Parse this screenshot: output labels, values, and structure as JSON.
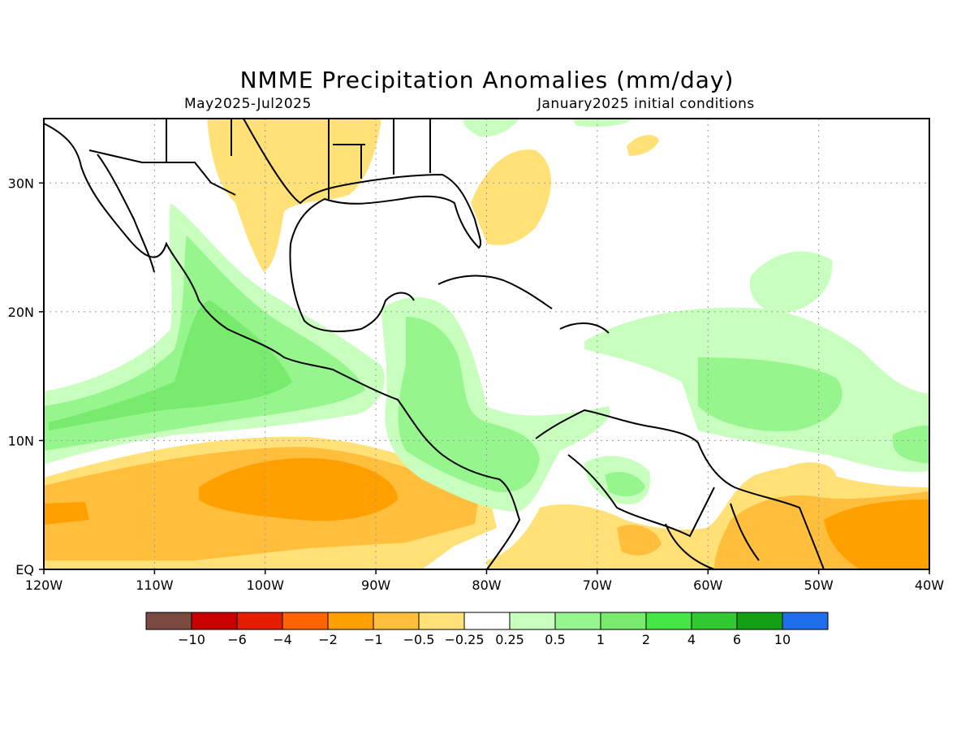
{
  "title": "NMME Precipitation Anomalies (mm/day)",
  "subtitle_left": "May2025-Jul2025",
  "subtitle_right": "January2025 initial conditions",
  "map": {
    "lon_range": [
      -120,
      -40
    ],
    "lat_range": [
      0,
      35
    ],
    "lat_ticks": [
      {
        "value": 30,
        "label": "30N"
      },
      {
        "value": 20,
        "label": "20N"
      },
      {
        "value": 10,
        "label": "10N"
      },
      {
        "value": 0,
        "label": "EQ"
      }
    ],
    "lon_ticks": [
      {
        "value": -120,
        "label": "120W"
      },
      {
        "value": -110,
        "label": "110W"
      },
      {
        "value": -100,
        "label": "100W"
      },
      {
        "value": -90,
        "label": "90W"
      },
      {
        "value": -80,
        "label": "80W"
      },
      {
        "value": -70,
        "label": "70W"
      },
      {
        "value": -60,
        "label": "60W"
      },
      {
        "value": -50,
        "label": "50W"
      },
      {
        "value": -40,
        "label": "40W"
      }
    ],
    "grid": "dotted"
  },
  "colorbar": {
    "colors": [
      "#7a4a40",
      "#c80000",
      "#e61e00",
      "#ff6400",
      "#ffa000",
      "#ffbe3c",
      "#ffe178",
      "#ffffff",
      "#c8ffbe",
      "#96f58c",
      "#78eb6e",
      "#46e646",
      "#32c832",
      "#14a014",
      "#1e6eeb"
    ],
    "labels": [
      "−10",
      "−6",
      "−4",
      "−2",
      "−1",
      "−0.5",
      "−0.25",
      "0.25",
      "0.5",
      "1",
      "2",
      "4",
      "6",
      "10"
    ]
  },
  "regions": {
    "dry_light": "#ffe178",
    "dry_mid": "#ffbe3c",
    "dry_strong": "#ffa000",
    "wet_light": "#c8ffbe",
    "wet_mid": "#96f58c",
    "wet_strong": "#78eb6e"
  }
}
